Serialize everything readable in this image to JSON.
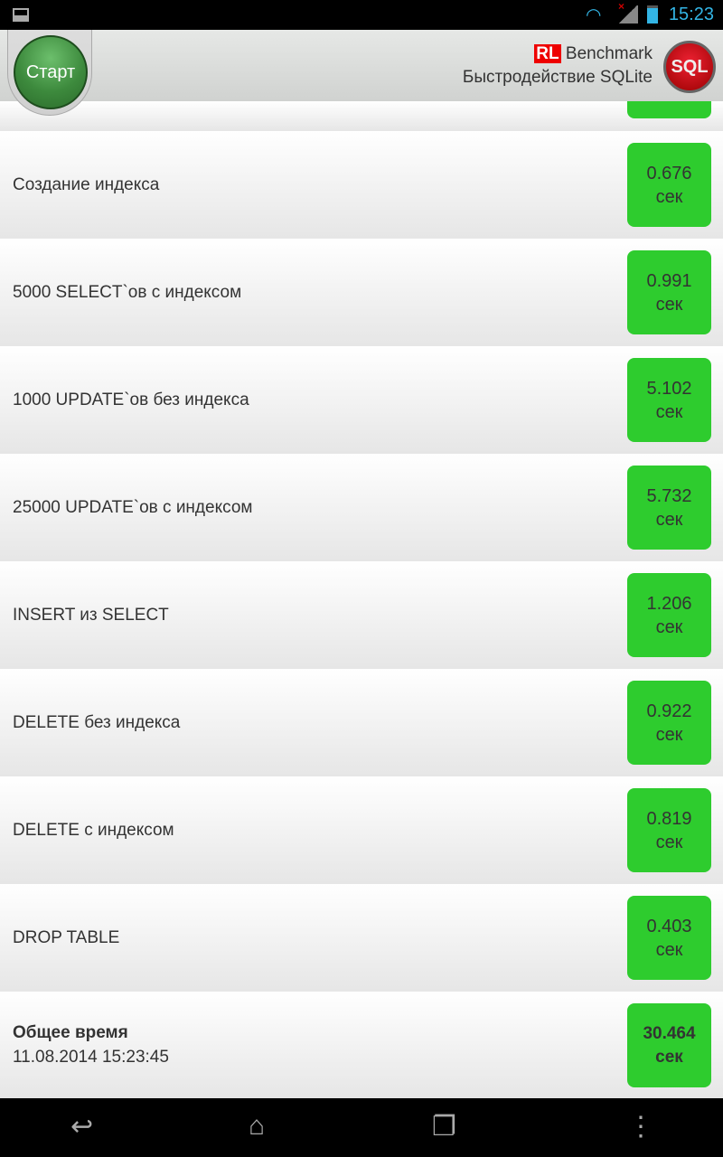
{
  "status_bar": {
    "time": "15:23"
  },
  "header": {
    "start_label": "Старт",
    "brand_badge": "RL",
    "brand": "Benchmark",
    "subtitle": "Быстродействие SQLite",
    "logo_text": "SQL"
  },
  "rows": [
    {
      "label": "Создание индекса",
      "value": "0.676",
      "unit": "сек"
    },
    {
      "label": "5000 SELECT`ов с индексом",
      "value": "0.991",
      "unit": "сек"
    },
    {
      "label": "1000 UPDATE`ов без индекса",
      "value": "5.102",
      "unit": "сек"
    },
    {
      "label": "25000 UPDATE`ов с индексом",
      "value": "5.732",
      "unit": "сек"
    },
    {
      "label": "INSERT из SELECT",
      "value": "1.206",
      "unit": "сек"
    },
    {
      "label": "DELETE без индекса",
      "value": "0.922",
      "unit": "сек"
    },
    {
      "label": "DELETE с индексом",
      "value": "0.819",
      "unit": "сек"
    },
    {
      "label": "DROP TABLE",
      "value": "0.403",
      "unit": "сек"
    }
  ],
  "total": {
    "label": "Общее время",
    "datetime": "11.08.2014 15:23:45",
    "value": "30.464",
    "unit": "сек"
  },
  "colors": {
    "result_green": "#2ecc2e",
    "accent": "#33b5e5",
    "brand_red": "#ee0000"
  }
}
